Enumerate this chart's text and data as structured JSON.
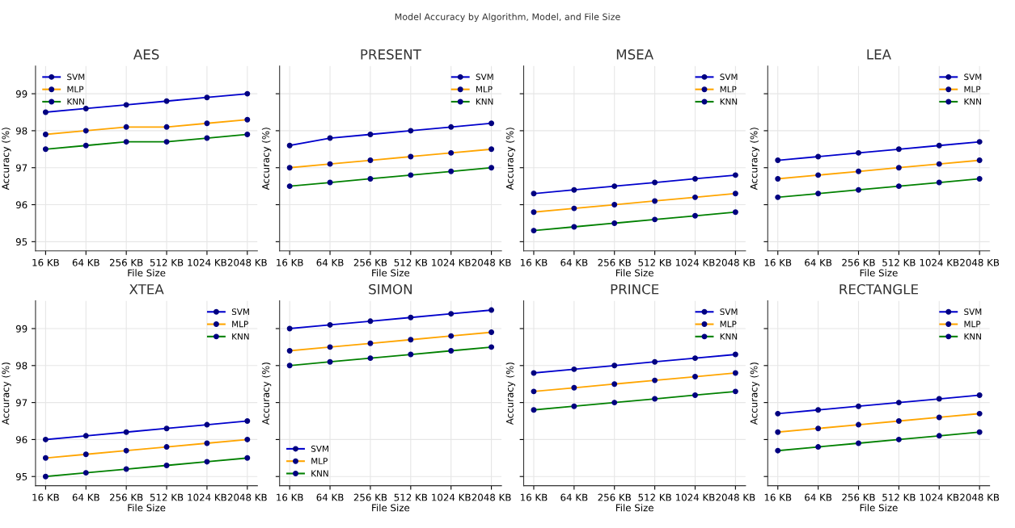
{
  "chart_data": [
    {
      "type": "line",
      "title": "AES",
      "xlabel": "File Size",
      "ylabel": "Accuracy (%)",
      "annotations": [
        "Model Accuracy by Algorithm, Model, and File Size"
      ],
      "categories": [
        "16 KB",
        "64 KB",
        "256 KB",
        "512 KB",
        "1024 KB",
        "2048 KB"
      ],
      "ylim": [
        94.75,
        99.75
      ],
      "yticks": [
        95,
        96,
        97,
        98,
        99
      ],
      "grid": true,
      "legend": "top left",
      "marker": "circle",
      "line_style": "solid",
      "series": [
        {
          "name": "SVM",
          "color": "#0000cc",
          "values": [
            98.5,
            98.6,
            98.7,
            98.8,
            98.9,
            99.0
          ]
        },
        {
          "name": "MLP",
          "color": "#ffa500",
          "values": [
            97.9,
            98.0,
            98.1,
            98.1,
            98.2,
            98.3
          ]
        },
        {
          "name": "KNN",
          "color": "#008000",
          "values": [
            97.5,
            97.6,
            97.7,
            97.7,
            97.8,
            97.9
          ]
        }
      ]
    },
    {
      "type": "line",
      "title": "PRESENT",
      "xlabel": "File Size",
      "ylabel": "Accuracy (%)",
      "categories": [
        "16 KB",
        "64 KB",
        "256 KB",
        "512 KB",
        "1024 KB",
        "2048 KB"
      ],
      "ylim": [
        94.75,
        99.75
      ],
      "yticks": [
        95,
        96,
        97,
        98,
        99
      ],
      "tick_labels": "x",
      "grid": true,
      "legend": "top right",
      "marker": "circle",
      "line_style": "solid",
      "series": [
        {
          "name": "SVM",
          "color": "#0000cc",
          "values": [
            97.6,
            97.8,
            97.9,
            98.0,
            98.1,
            98.2
          ]
        },
        {
          "name": "MLP",
          "color": "#ffa500",
          "values": [
            97.0,
            97.1,
            97.2,
            97.3,
            97.4,
            97.5
          ]
        },
        {
          "name": "KNN",
          "color": "#008000",
          "values": [
            96.5,
            96.6,
            96.7,
            96.8,
            96.9,
            97.0
          ]
        }
      ]
    },
    {
      "type": "line",
      "title": "MSEA",
      "xlabel": "File Size",
      "ylabel": "Accuracy (%)",
      "categories": [
        "16 KB",
        "64 KB",
        "256 KB",
        "512 KB",
        "1024 KB",
        "2048 KB"
      ],
      "ylim": [
        94.75,
        99.75
      ],
      "yticks": [
        95,
        96,
        97,
        98,
        99
      ],
      "tick_labels": "x",
      "grid": true,
      "legend": "top right",
      "marker": "circle",
      "line_style": "solid",
      "series": [
        {
          "name": "SVM",
          "color": "#0000cc",
          "values": [
            96.3,
            96.4,
            96.5,
            96.6,
            96.7,
            96.8
          ]
        },
        {
          "name": "MLP",
          "color": "#ffa500",
          "values": [
            95.8,
            95.9,
            96.0,
            96.1,
            96.2,
            96.3
          ]
        },
        {
          "name": "KNN",
          "color": "#008000",
          "values": [
            95.3,
            95.4,
            95.5,
            95.6,
            95.7,
            95.8
          ]
        }
      ]
    },
    {
      "type": "line",
      "title": "LEA",
      "xlabel": "File Size",
      "ylabel": "Accuracy (%)",
      "categories": [
        "16 KB",
        "64 KB",
        "256 KB",
        "512 KB",
        "1024 KB",
        "2048 KB"
      ],
      "ylim": [
        94.75,
        99.75
      ],
      "yticks": [
        95,
        96,
        97,
        98,
        99
      ],
      "tick_labels": "x",
      "grid": true,
      "legend": "top right",
      "marker": "circle",
      "line_style": "solid",
      "series": [
        {
          "name": "SVM",
          "color": "#0000cc",
          "values": [
            97.2,
            97.3,
            97.4,
            97.5,
            97.6,
            97.7
          ]
        },
        {
          "name": "MLP",
          "color": "#ffa500",
          "values": [
            96.7,
            96.8,
            96.9,
            97.0,
            97.1,
            97.2
          ]
        },
        {
          "name": "KNN",
          "color": "#008000",
          "values": [
            96.2,
            96.3,
            96.4,
            96.5,
            96.6,
            96.7
          ]
        }
      ]
    },
    {
      "type": "line",
      "title": "XTEA",
      "xlabel": "File Size",
      "ylabel": "Accuracy (%)",
      "categories": [
        "16 KB",
        "64 KB",
        "256 KB",
        "512 KB",
        "1024 KB",
        "2048 KB"
      ],
      "ylim": [
        94.75,
        99.75
      ],
      "yticks": [
        95,
        96,
        97,
        98,
        99
      ],
      "grid": true,
      "legend": "top right",
      "marker": "circle",
      "line_style": "solid",
      "series": [
        {
          "name": "SVM",
          "color": "#0000cc",
          "values": [
            96.0,
            96.1,
            96.2,
            96.3,
            96.4,
            96.5
          ]
        },
        {
          "name": "MLP",
          "color": "#ffa500",
          "values": [
            95.5,
            95.6,
            95.7,
            95.8,
            95.9,
            96.0
          ]
        },
        {
          "name": "KNN",
          "color": "#008000",
          "values": [
            95.0,
            95.1,
            95.2,
            95.3,
            95.4,
            95.5
          ]
        }
      ]
    },
    {
      "type": "line",
      "title": "SIMON",
      "xlabel": "File Size",
      "ylabel": "Accuracy (%)",
      "categories": [
        "16 KB",
        "64 KB",
        "256 KB",
        "512 KB",
        "1024 KB",
        "2048 KB"
      ],
      "ylim": [
        94.75,
        99.75
      ],
      "yticks": [
        95,
        96,
        97,
        98,
        99
      ],
      "tick_labels": "x",
      "grid": true,
      "legend": "bottom left",
      "marker": "circle",
      "line_style": "solid",
      "series": [
        {
          "name": "SVM",
          "color": "#0000cc",
          "values": [
            99.0,
            99.1,
            99.2,
            99.3,
            99.4,
            99.5
          ]
        },
        {
          "name": "MLP",
          "color": "#ffa500",
          "values": [
            98.4,
            98.5,
            98.6,
            98.7,
            98.8,
            98.9
          ]
        },
        {
          "name": "KNN",
          "color": "#008000",
          "values": [
            98.0,
            98.1,
            98.2,
            98.3,
            98.4,
            98.5
          ]
        }
      ]
    },
    {
      "type": "line",
      "title": "PRINCE",
      "xlabel": "File Size",
      "ylabel": "Accuracy (%)",
      "categories": [
        "16 KB",
        "64 KB",
        "256 KB",
        "512 KB",
        "1024 KB",
        "2048 KB"
      ],
      "ylim": [
        94.75,
        99.75
      ],
      "yticks": [
        95,
        96,
        97,
        98,
        99
      ],
      "tick_labels": "x",
      "grid": true,
      "legend": "top right",
      "marker": "circle",
      "line_style": "solid",
      "series": [
        {
          "name": "SVM",
          "color": "#0000cc",
          "values": [
            97.8,
            97.9,
            98.0,
            98.1,
            98.2,
            98.3
          ]
        },
        {
          "name": "MLP",
          "color": "#ffa500",
          "values": [
            97.3,
            97.4,
            97.5,
            97.6,
            97.7,
            97.8
          ]
        },
        {
          "name": "KNN",
          "color": "#008000",
          "values": [
            96.8,
            96.9,
            97.0,
            97.1,
            97.2,
            97.3
          ]
        }
      ]
    },
    {
      "type": "line",
      "title": "RECTANGLE",
      "xlabel": "File Size",
      "ylabel": "Accuracy (%)",
      "categories": [
        "16 KB",
        "64 KB",
        "256 KB",
        "512 KB",
        "1024 KB",
        "2048 KB"
      ],
      "ylim": [
        94.75,
        99.75
      ],
      "yticks": [
        95,
        96,
        97,
        98,
        99
      ],
      "tick_labels": "x",
      "grid": true,
      "legend": "top right",
      "marker": "circle",
      "line_style": "solid",
      "series": [
        {
          "name": "SVM",
          "color": "#0000cc",
          "values": [
            96.7,
            96.8,
            96.9,
            97.0,
            97.1,
            97.2
          ]
        },
        {
          "name": "MLP",
          "color": "#ffa500",
          "values": [
            96.2,
            96.3,
            96.4,
            96.5,
            96.6,
            96.7
          ]
        },
        {
          "name": "KNN",
          "color": "#008000",
          "values": [
            95.7,
            95.8,
            95.9,
            96.0,
            96.1,
            96.2
          ]
        }
      ]
    }
  ]
}
